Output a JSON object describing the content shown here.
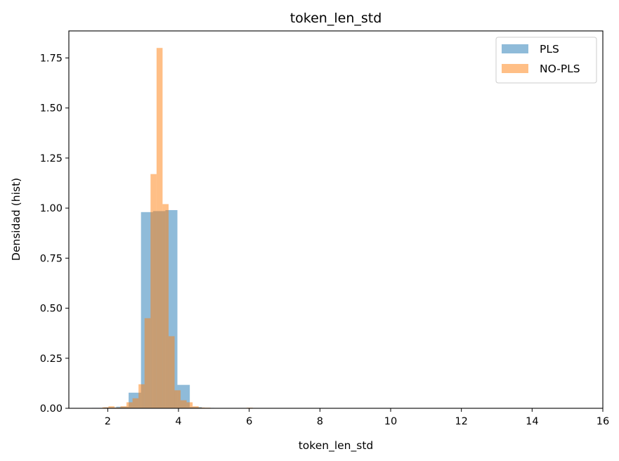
{
  "chart_data": {
    "type": "bar",
    "title": "token_len_std",
    "xlabel": "token_len_std",
    "ylabel": "Densidad (hist)",
    "xlim": [
      0.9,
      16.0
    ],
    "ylim": [
      0,
      1.885
    ],
    "xticks": [
      2,
      4,
      6,
      8,
      10,
      12,
      14,
      16
    ],
    "yticks": [
      0.0,
      0.25,
      0.5,
      0.75,
      1.0,
      1.25,
      1.5,
      1.75
    ],
    "xtick_labels": [
      "2",
      "4",
      "6",
      "8",
      "10",
      "12",
      "14",
      "16"
    ],
    "ytick_labels": [
      "0.00",
      "0.25",
      "0.50",
      "0.75",
      "1.00",
      "1.25",
      "1.50",
      "1.75"
    ],
    "legend_position": "upper right",
    "grid": false,
    "series": [
      {
        "name": "PLS",
        "color": "#1f77b4",
        "alpha": 0.5,
        "bins": [
          {
            "x0": 1.55,
            "x1": 1.9,
            "y": 0.002
          },
          {
            "x0": 1.9,
            "x1": 2.24,
            "y": 0.004
          },
          {
            "x0": 2.24,
            "x1": 2.59,
            "y": 0.008
          },
          {
            "x0": 2.59,
            "x1": 2.94,
            "y": 0.078
          },
          {
            "x0": 2.94,
            "x1": 3.28,
            "y": 0.98
          },
          {
            "x0": 3.28,
            "x1": 3.63,
            "y": 0.985
          },
          {
            "x0": 3.63,
            "x1": 3.97,
            "y": 0.99
          },
          {
            "x0": 3.97,
            "x1": 4.32,
            "y": 0.117
          },
          {
            "x0": 4.32,
            "x1": 4.66,
            "y": 0.006
          },
          {
            "x0": 4.66,
            "x1": 5.01,
            "y": 0.002
          },
          {
            "x0": 5.01,
            "x1": 5.35,
            "y": 0.0008
          },
          {
            "x0": 5.35,
            "x1": 5.7,
            "y": 0.0006
          },
          {
            "x0": 5.7,
            "x1": 6.04,
            "y": 0.0006
          },
          {
            "x0": 6.04,
            "x1": 6.39,
            "y": 0.0004
          }
        ]
      },
      {
        "name": "NO-PLS",
        "color": "#ff7f0e",
        "alpha": 0.5,
        "bins": [
          {
            "x0": 1.85,
            "x1": 2.02,
            "y": 0.005
          },
          {
            "x0": 2.02,
            "x1": 2.19,
            "y": 0.01
          },
          {
            "x0": 2.19,
            "x1": 2.36,
            "y": 0.004
          },
          {
            "x0": 2.36,
            "x1": 2.53,
            "y": 0.01
          },
          {
            "x0": 2.53,
            "x1": 2.7,
            "y": 0.03
          },
          {
            "x0": 2.7,
            "x1": 2.87,
            "y": 0.05
          },
          {
            "x0": 2.87,
            "x1": 3.04,
            "y": 0.12
          },
          {
            "x0": 3.04,
            "x1": 3.21,
            "y": 0.45
          },
          {
            "x0": 3.21,
            "x1": 3.38,
            "y": 1.17
          },
          {
            "x0": 3.38,
            "x1": 3.55,
            "y": 1.8
          },
          {
            "x0": 3.55,
            "x1": 3.72,
            "y": 1.02
          },
          {
            "x0": 3.72,
            "x1": 3.89,
            "y": 0.36
          },
          {
            "x0": 3.89,
            "x1": 4.06,
            "y": 0.09
          },
          {
            "x0": 4.06,
            "x1": 4.23,
            "y": 0.04
          },
          {
            "x0": 4.23,
            "x1": 4.4,
            "y": 0.03
          },
          {
            "x0": 4.4,
            "x1": 4.57,
            "y": 0.01
          },
          {
            "x0": 4.57,
            "x1": 4.74,
            "y": 0.004
          },
          {
            "x0": 4.74,
            "x1": 4.91,
            "y": 0.003
          },
          {
            "x0": 5.93,
            "x1": 6.1,
            "y": 0.003
          }
        ]
      }
    ]
  }
}
